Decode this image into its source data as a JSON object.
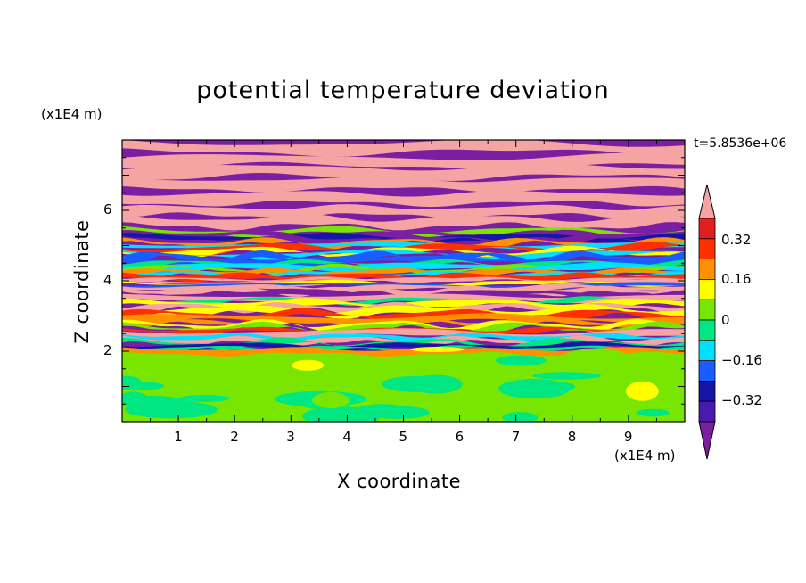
{
  "chart_data": {
    "type": "heatmap",
    "title": "potential temperature deviation",
    "xlabel": "X coordinate",
    "ylabel": "Z coordinate",
    "x_unit": "(x1E4 m)",
    "z_unit": "(x1E4 m)",
    "time_label": "t=5.8536e+06",
    "xlim": [
      0,
      10
    ],
    "ylim": [
      0,
      8
    ],
    "x_ticks": [
      "1",
      "2",
      "3",
      "4",
      "5",
      "6",
      "7",
      "8",
      "9"
    ],
    "y_ticks": [
      "2",
      "4",
      "6"
    ],
    "colorbar": {
      "labels": [
        "0.32",
        "0.16",
        "0",
        "−0.16",
        "−0.32"
      ],
      "levels": [
        -0.4,
        -0.36,
        -0.32,
        -0.24,
        -0.16,
        -0.08,
        0,
        0.08,
        0.16,
        0.24,
        0.32,
        0.36,
        0.4
      ],
      "colors": [
        "#7b1fa2",
        "#4a1ab0",
        "#1515a8",
        "#1a5cff",
        "#00e0ff",
        "#00e680",
        "#78e600",
        "#ffff00",
        "#ff9000",
        "#ff3000",
        "#e02020",
        "#f5a3a3"
      ],
      "extend": "both"
    },
    "field_bands": [
      {
        "z_range": [
          0,
          2.0
        ],
        "dominant": "#78e600",
        "description": "lower layer mostly near zero"
      },
      {
        "z_range": [
          2.0,
          5.5
        ],
        "dominant": "mixed",
        "description": "alternating strong bands"
      },
      {
        "z_range": [
          5.5,
          8.0
        ],
        "dominant": "#f5a3a3",
        "description": "pink and purple layering"
      }
    ]
  }
}
